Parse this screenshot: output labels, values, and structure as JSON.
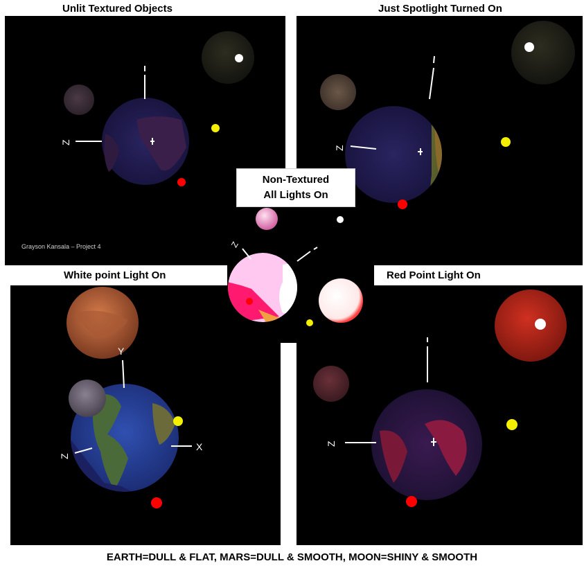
{
  "panels": {
    "top_left": {
      "title": "Unlit Textured Objects",
      "credit": "Grayson Kansala – Project 4"
    },
    "top_right": {
      "title": "Just Spotlight Turned On"
    },
    "center": {
      "title_line1": "Non-Textured",
      "title_line2": "All Lights On"
    },
    "bottom_left": {
      "title": "White point Light On"
    },
    "bottom_right": {
      "title": "Red Point Light On"
    }
  },
  "axis_labels": {
    "x": "X",
    "y": "Y",
    "z": "Z"
  },
  "footer": "EARTH=DULL & FLAT,  MARS=DULL & SMOOTH,  MOON=SHINY & SMOOTH",
  "colors": {
    "sun_yellow": "#f5f000",
    "red_light": "#ff0000",
    "white_light": "#ffffff"
  }
}
